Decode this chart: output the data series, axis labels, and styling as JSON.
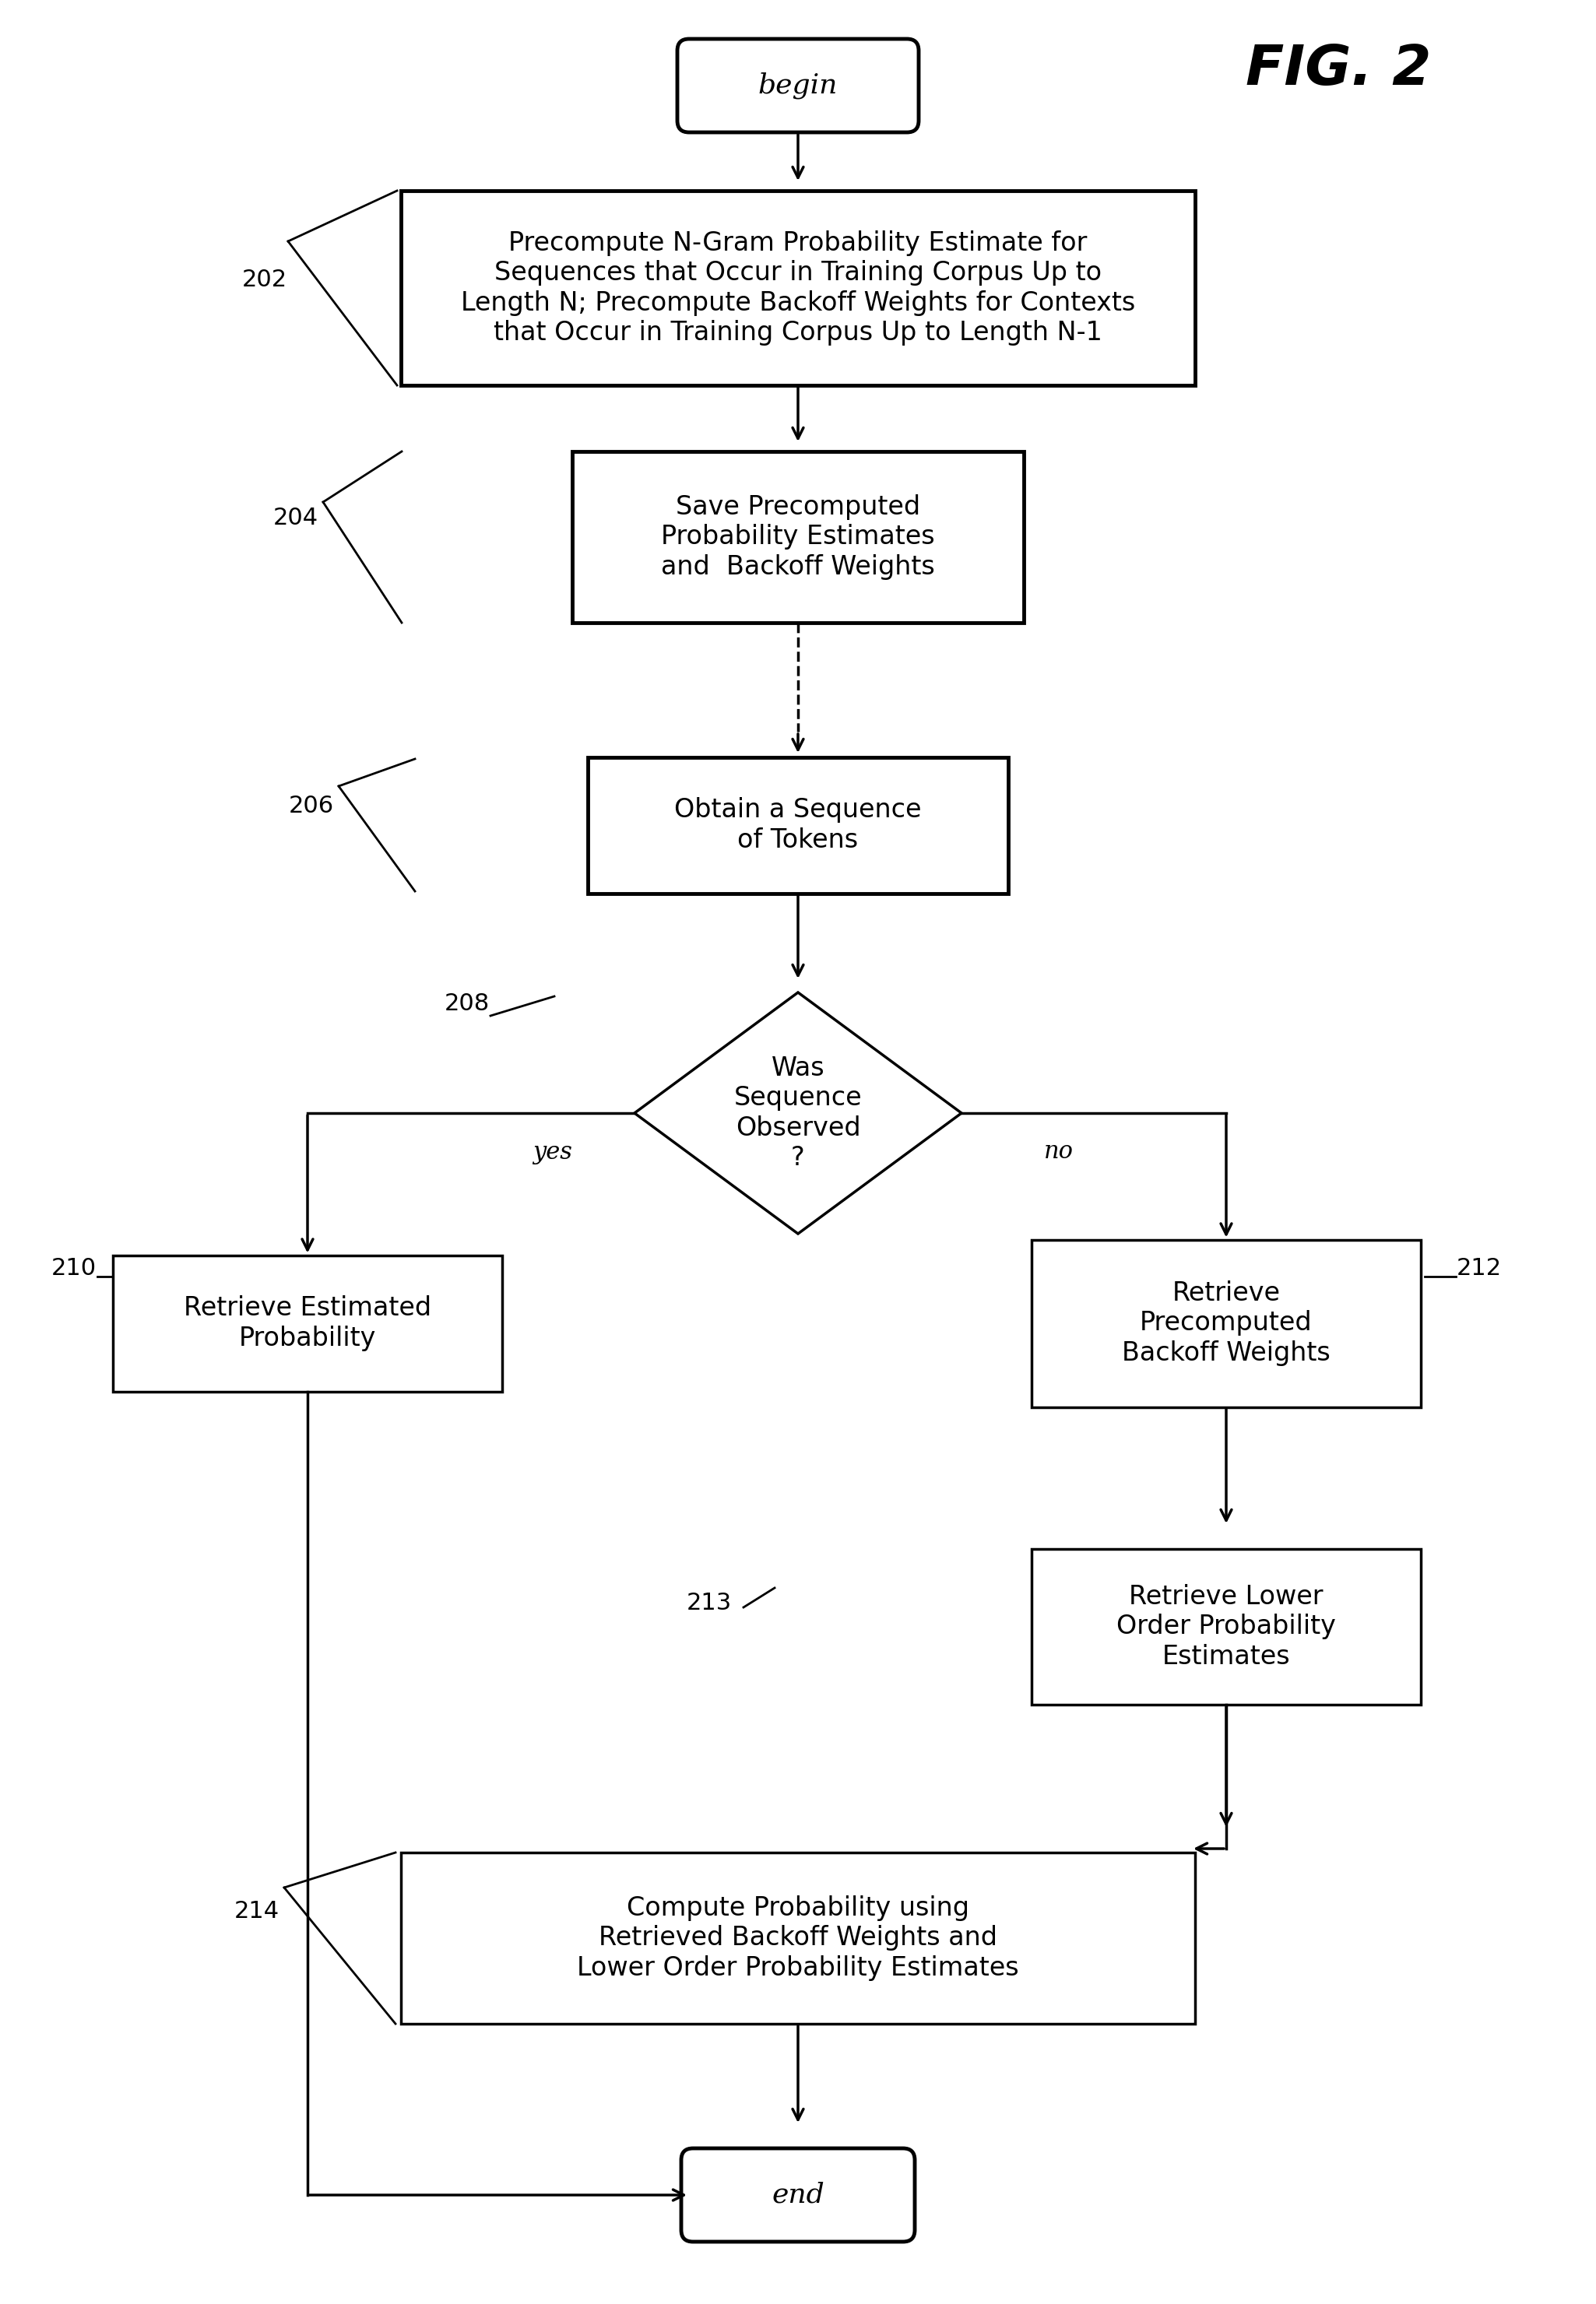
{
  "fig_label": "FIG. 2",
  "bg_color": "#ffffff",
  "begin_text": "begin",
  "end_text": "end",
  "box202_text": "Precompute N-Gram Probability Estimate for\nSequences that Occur in Training Corpus Up to\nLength N; Precompute Backoff Weights for Contexts\nthat Occur in Training Corpus Up to Length N-1",
  "box204_text": "Save Precomputed\nProbability Estimates\nand  Backoff Weights",
  "box206_text": "Obtain a Sequence\nof Tokens",
  "diamond208_text": "Was\nSequence\nObserved\n?",
  "box210_text": "Retrieve Estimated\nProbability",
  "box212_text": "Retrieve\nPrecomputed\nBackoff Weights",
  "box213_text": "Retrieve Lower\nOrder Probability\nEstimates",
  "box214_text": "Compute Probability using\nRetrieved Backoff Weights and\nLower Order Probability Estimates",
  "label_202": "202",
  "label_204": "204",
  "label_206": "206",
  "label_208": "208",
  "label_210": "210",
  "label_212": "212",
  "label_213": "213",
  "label_214": "214",
  "yes_text": "yes",
  "no_text": "no"
}
